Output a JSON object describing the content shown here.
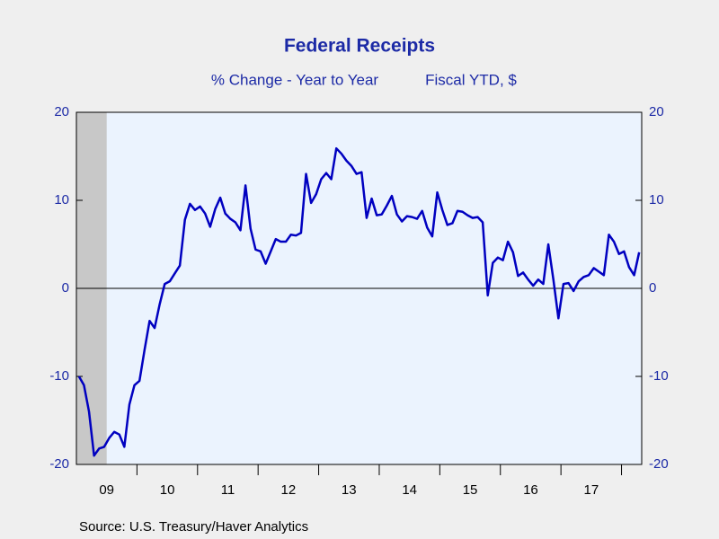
{
  "chart_data": {
    "type": "line",
    "title": "Federal Receipts",
    "subtitle": "% Change - Year to Year",
    "subtitle2": "Fiscal YTD, $",
    "source": "Source:  U.S. Treasury/Haver Analytics",
    "categories": [
      null,
      null,
      null,
      null,
      null,
      "09",
      null,
      null,
      null,
      null,
      null,
      null,
      null,
      null,
      null,
      null,
      null,
      "10",
      null,
      null,
      null,
      null,
      null,
      null,
      null,
      null,
      null,
      null,
      null,
      "11",
      null,
      null,
      null,
      null,
      null,
      null,
      null,
      null,
      null,
      null,
      null,
      "12",
      null,
      null,
      null,
      null,
      null,
      null,
      null,
      null,
      null,
      null,
      null,
      "13",
      null,
      null,
      null,
      null,
      null,
      null,
      null,
      null,
      null,
      null,
      null,
      "14",
      null,
      null,
      null,
      null,
      null,
      null,
      null,
      null,
      null,
      null,
      null,
      "15",
      null,
      null,
      null,
      null,
      null,
      null,
      null,
      null,
      null,
      null,
      null,
      "16",
      null,
      null,
      null,
      null,
      null,
      null,
      null,
      null,
      null,
      null,
      null,
      "17",
      null,
      null,
      null,
      null,
      null,
      null,
      null,
      null,
      null,
      null
    ],
    "series": [
      {
        "name": "Federal Receipts",
        "color": "#0000c0",
        "values": [
          -10,
          -11,
          -14,
          -19,
          -18.2,
          -18,
          -17,
          -16.3,
          -16.6,
          -18,
          -13.2,
          -11,
          -10.5,
          -7,
          -3.7,
          -4.5,
          -1.8,
          0.5,
          0.8,
          1.7,
          2.6,
          7.8,
          9.6,
          8.9,
          9.3,
          8.5,
          7,
          9,
          10.3,
          8.5,
          7.9,
          7.5,
          6.6,
          11.7,
          6.8,
          4.4,
          4.2,
          2.8,
          4.2,
          5.6,
          5.3,
          5.3,
          6.1,
          6.0,
          6.3,
          13,
          9.7,
          10.7,
          12.4,
          13.1,
          12.4,
          15.9,
          15.3,
          14.5,
          13.9,
          13,
          13.2,
          8,
          10.2,
          8.3,
          8.4,
          9.4,
          10.5,
          8.4,
          7.6,
          8.2,
          8.1,
          7.9,
          8.8,
          6.9,
          5.9,
          10.9,
          8.9,
          7.2,
          7.4,
          8.8,
          8.7,
          8.3,
          8,
          8.1,
          7.5,
          -0.8,
          2.9,
          3.5,
          3.2,
          5.3,
          4.1,
          1.4,
          1.8,
          1,
          0.3,
          1,
          0.5,
          5,
          1,
          -3.4,
          0.5,
          0.6,
          -0.3,
          0.8,
          1.3,
          1.5,
          2.3,
          1.9,
          1.5,
          6.1,
          5.3,
          3.9,
          4.2,
          2.4,
          1.5,
          4.1
        ]
      }
    ],
    "shaded_span": [
      0,
      5
    ],
    "ylim": [
      -20,
      20
    ],
    "yticks": [
      -20,
      -10,
      0,
      10,
      20
    ],
    "y2lim": [
      -20,
      20
    ],
    "y2ticks": [
      -20,
      -10,
      0,
      10,
      20
    ]
  }
}
